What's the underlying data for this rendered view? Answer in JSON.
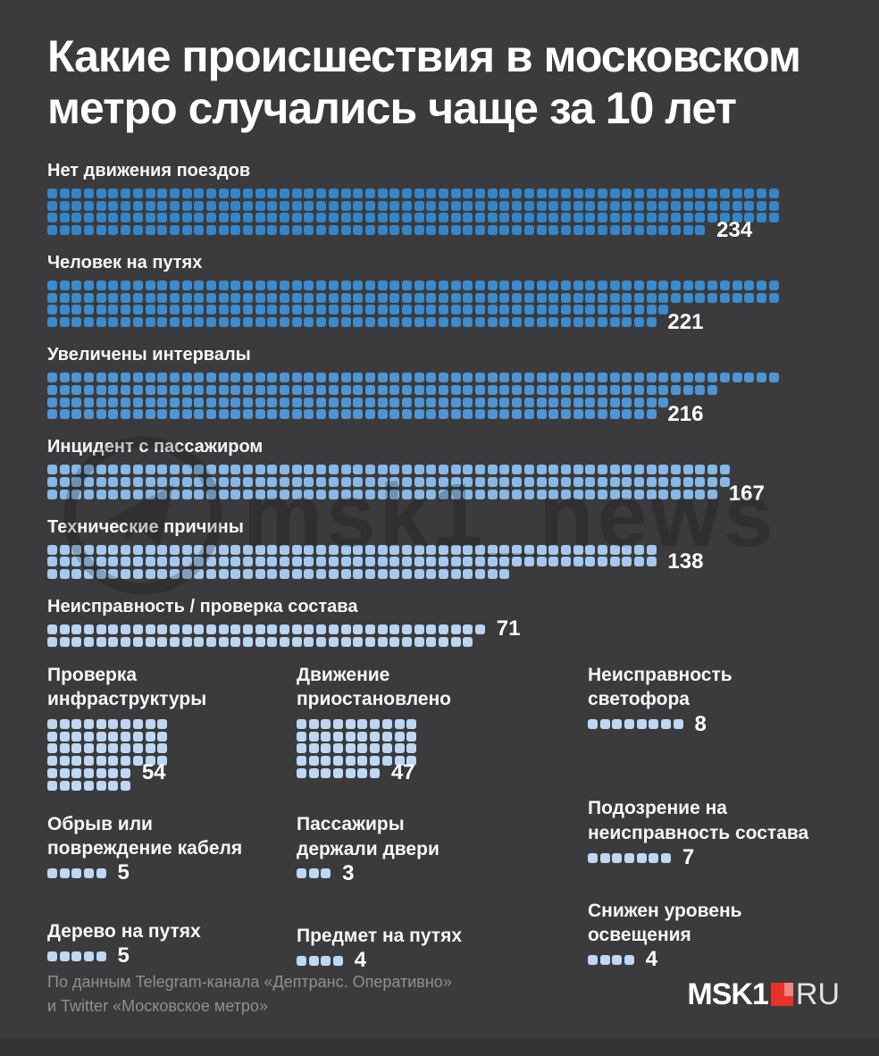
{
  "title": "Какие происшествия в московском метро случались чаще за 10 лет",
  "title_lines": [
    "Какие происшествия в московском",
    "метро случались чаще за 10 лет"
  ],
  "watermark": {
    "text": "msk1_news"
  },
  "footer": {
    "source_line1": "По данным Telegram-канала «Дептранс. Оперативно»",
    "source_line2": "и Twitter «Московское метро»",
    "logo": {
      "msk1": "MSK1",
      "ru": "RU"
    }
  },
  "colors": {
    "background": "#3b3b3d",
    "text": "#ffffff",
    "muted_text": "#8f9093",
    "logo_red": "#e8312a",
    "logo_red_light": "#f0867e",
    "watermark": "rgba(10,10,10,0.22)"
  },
  "chart_data": {
    "type": "pictogram",
    "title": "Какие происшествия в московском метро случались чаще за 10 лет",
    "legend_position": "none",
    "grid": false,
    "categories": [
      "Нет движения поездов",
      "Человек на путях",
      "Увеличены интервалы",
      "Инцидент с пассажиром",
      "Технические причины",
      "Неисправность / проверка состава",
      "Проверка инфраструктуры",
      "Движение приостановлено",
      "Неисправность светофора",
      "Обрыв или повреждение кабеля",
      "Пассажиры держали двери",
      "Подозрение на неисправность состава",
      "Дерево на путях",
      "Предмет на путях",
      "Снижен уровень освещения"
    ],
    "values": [
      234,
      221,
      216,
      167,
      138,
      71,
      54,
      47,
      8,
      5,
      3,
      7,
      5,
      4,
      4
    ],
    "big": [
      {
        "label": "Нет движения поездов",
        "value": 234,
        "color": "#3586c9",
        "row_counts": [
          60,
          60,
          60,
          54
        ],
        "label_row": 3
      },
      {
        "label": "Человек на путях",
        "value": 221,
        "color": "#3b8bcd",
        "row_counts": [
          60,
          60,
          51,
          50
        ],
        "label_row": 3
      },
      {
        "label": "Увеличены интервалы",
        "value": 216,
        "color": "#4f95d3",
        "row_counts": [
          60,
          55,
          51,
          50
        ],
        "label_row": 3
      },
      {
        "label": "Инцидент с пассажиром",
        "value": 167,
        "color": "#87b8e6",
        "row_counts": [
          56,
          56,
          55
        ],
        "label_row": 2
      },
      {
        "label": "Технические причины",
        "value": 138,
        "color": "#a5c9ee",
        "row_counts": [
          50,
          50,
          38
        ],
        "label_row": 1
      },
      {
        "label": "Неисправность / проверка состава",
        "value": 71,
        "color": "#b9d5f2",
        "row_counts": [
          36,
          35
        ],
        "label_row": 0
      }
    ],
    "small_columns": [
      [
        {
          "label": "Проверка инфраструктуры",
          "label_lines": [
            "Проверка",
            "инфраструктуры"
          ],
          "value": 54,
          "color": "#bed8f3",
          "row_counts": [
            10,
            10,
            10,
            10,
            7,
            7
          ],
          "label_row": 4,
          "gap_before": 0
        },
        {
          "label": "Обрыв или повреждение кабеля",
          "label_lines": [
            "Обрыв или",
            "повреждение кабеля"
          ],
          "value": 5,
          "color": "#bed8f3",
          "row_counts": [
            5
          ],
          "label_row": 0,
          "gap_before": 24
        },
        {
          "label": "Дерево на путях",
          "label_lines": [
            "Дерево на путях"
          ],
          "value": 5,
          "color": "#bed8f3",
          "row_counts": [
            5
          ],
          "label_row": 0,
          "gap_before": 46
        }
      ],
      [
        {
          "label": "Движение приостановлено",
          "label_lines": [
            "Движение",
            "приостановлено"
          ],
          "value": 47,
          "color": "#bed8f3",
          "row_counts": [
            10,
            10,
            10,
            10,
            7
          ],
          "label_row": 4,
          "gap_before": 0
        },
        {
          "label": "Пассажиры держали двери",
          "label_lines": [
            "Пассажиры",
            "держали двери"
          ],
          "value": 3,
          "color": "#bed8f3",
          "row_counts": [
            3
          ],
          "label_row": 0,
          "gap_before": 38
        },
        {
          "label": "Предмет на путях",
          "label_lines": [
            "Предмет на путях"
          ],
          "value": 4,
          "color": "#bed8f3",
          "row_counts": [
            4
          ],
          "label_row": 0,
          "gap_before": 51
        }
      ],
      [
        {
          "label": "Неисправность светофора",
          "label_lines": [
            "Неисправность",
            "светофора"
          ],
          "value": 8,
          "color": "#bed8f3",
          "row_counts": [
            8
          ],
          "label_row": 0,
          "gap_before": 0
        },
        {
          "label": "Подозрение на неисправность состава",
          "label_lines": [
            "Подозрение на",
            "неисправность состава"
          ],
          "value": 7,
          "color": "#bed8f3",
          "row_counts": [
            7
          ],
          "label_row": 0,
          "gap_before": 75
        },
        {
          "label": "Снижен уровень освещения",
          "label_lines": [
            "Снижен уровень",
            "освещения"
          ],
          "value": 4,
          "color": "#bed8f3",
          "row_counts": [
            4
          ],
          "label_row": 0,
          "gap_before": 40
        }
      ]
    ]
  }
}
